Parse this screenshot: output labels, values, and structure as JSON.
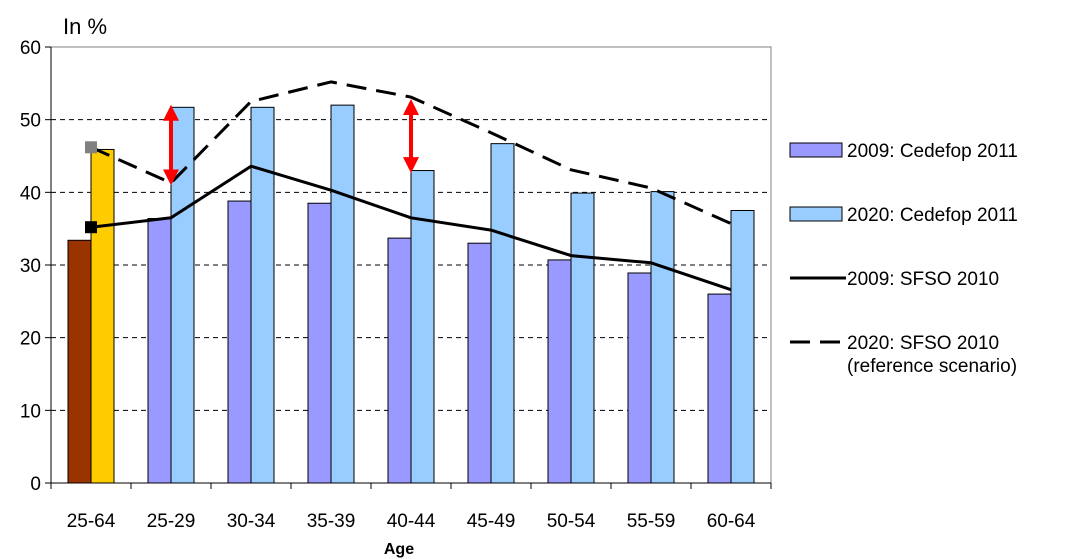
{
  "chart_data": {
    "type": "bar",
    "unit_label": "In %",
    "xlabel": "Age",
    "ylabel": "",
    "ylim": [
      0,
      60
    ],
    "yticks": [
      0,
      10,
      20,
      30,
      40,
      50,
      60
    ],
    "grid": "horizontal-dashed",
    "legend_position": "right",
    "categories": [
      "25-64",
      "25-29",
      "30-34",
      "35-39",
      "40-44",
      "45-49",
      "50-54",
      "55-59",
      "60-64"
    ],
    "series": [
      {
        "name": "2009: Cedefop 2011",
        "kind": "bar",
        "color": "#9999ff",
        "values": [
          33.4,
          36.4,
          38.8,
          38.5,
          33.7,
          33.0,
          30.7,
          28.9,
          26.0
        ],
        "first_category_color": "#993300"
      },
      {
        "name": "2020: Cedefop 2011",
        "kind": "bar",
        "color": "#99ccff",
        "values": [
          45.9,
          51.7,
          51.7,
          52.0,
          43.0,
          46.7,
          39.9,
          40.1,
          37.5
        ],
        "first_category_color": "#ffcc00"
      },
      {
        "name": "2009: SFSO 2010",
        "kind": "line",
        "style": "solid",
        "color": "#000000",
        "values": [
          35.2,
          36.5,
          43.6,
          40.3,
          36.5,
          34.8,
          31.3,
          30.3,
          26.6
        ],
        "first_category_marker_color": "#000000"
      },
      {
        "name": "2020: SFSO 2010\n(reference scenario)",
        "kind": "line",
        "style": "dashed",
        "color": "#000000",
        "values": [
          46.2,
          41.3,
          52.5,
          55.2,
          53.1,
          48.2,
          43.1,
          40.6,
          35.7
        ],
        "first_category_marker_color": "#808080"
      }
    ],
    "annotations": [
      {
        "type": "double-arrow",
        "category": "25-29",
        "from": 41.5,
        "to": 51.5,
        "color": "#ff0000"
      },
      {
        "type": "double-arrow",
        "category": "40-44",
        "from": 43.2,
        "to": 52.3,
        "color": "#ff0000"
      }
    ]
  }
}
